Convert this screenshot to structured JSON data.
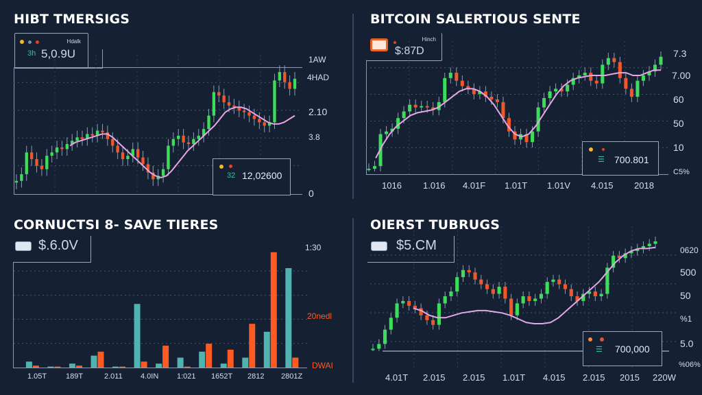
{
  "colors": {
    "background": "#162033",
    "bullish": "#3ddc5a",
    "bearish": "#f0582a",
    "moving_average": "#e6a7e6",
    "bar_teal": "#4fb3b0",
    "bar_orange": "#ff5a22",
    "grid": "#4a5670",
    "axis": "#8d9bb0"
  },
  "panels": [
    {
      "title": "HIBT TMERSIGS",
      "info_label": "Hdalk",
      "info_prefix": "3h",
      "info_value": "5,0.9U",
      "legend_value": "12,02600",
      "legend_prefix": "32",
      "y_ticks": [
        "1AW",
        "4HAD",
        "2.10",
        "3.8",
        "0"
      ]
    },
    {
      "title": "BITCOIN SALERTIOUS SENTE",
      "info_label": "Hinch",
      "info_value": "$:87D",
      "legend_value": "700.801",
      "y_ticks": [
        "7.3",
        "7.00",
        "60",
        "50",
        "10",
        "C5%"
      ],
      "x_ticks": [
        "1016",
        "1.016",
        "4.01F",
        "1.01T",
        "1.01V",
        "4.015",
        "2018"
      ]
    },
    {
      "title": "CORNUCTSI 8- SAVE TIERES",
      "info_value": "$.6.0V",
      "y_ticks": [
        "1:30",
        "20nedl",
        "DWAI"
      ],
      "x_ticks": [
        "1.05T",
        "189T",
        "2.011",
        "4.0IN",
        "1:021",
        "1652T",
        "2812",
        "2801Z"
      ]
    },
    {
      "title": "OIERST TUBRUGS",
      "info_value": "$5.CM",
      "legend_value": "700,000",
      "y_ticks": [
        "0620",
        "500",
        "50",
        "%1",
        "5.0",
        "%06%"
      ],
      "x_ticks": [
        "4.01T",
        "2.015",
        "2.015",
        "1.01T",
        "4.015",
        "2.015",
        "2015",
        "220W"
      ]
    }
  ],
  "chart_data": [
    {
      "type": "candlestick",
      "title": "HIBT TMERSIGS",
      "xlabel": "",
      "ylabel": "",
      "y_tick_labels": [
        "1AW",
        "4HAD",
        "2.10",
        "3.8",
        "0"
      ],
      "grid": true,
      "overlay": "moving average (pink)",
      "close_series": [
        5,
        9,
        22,
        18,
        14,
        12,
        20,
        22,
        25,
        24,
        27,
        29,
        31,
        30,
        33,
        32,
        35,
        34,
        30,
        26,
        22,
        18,
        20,
        24,
        19,
        15,
        10,
        6,
        8,
        12,
        26,
        30,
        32,
        28,
        27,
        30,
        32,
        36,
        44,
        58,
        56,
        52,
        50,
        49,
        47,
        46,
        44,
        42,
        40,
        38,
        40,
        65,
        70,
        64,
        60,
        66
      ],
      "ma_series": [
        null,
        null,
        null,
        null,
        null,
        null,
        null,
        null,
        null,
        null,
        26,
        28,
        29,
        30,
        31,
        32,
        33,
        33,
        31,
        28,
        25,
        22,
        19,
        16,
        13,
        10,
        8,
        7,
        8,
        11,
        15,
        19,
        23,
        26,
        29,
        32,
        35,
        38,
        42,
        46,
        48,
        49,
        49,
        48,
        46,
        44,
        42,
        40,
        39,
        39,
        40,
        42,
        44
      ],
      "annotations": [
        "5,0.9U",
        "12,02600"
      ]
    },
    {
      "type": "candlestick",
      "title": "BITCOIN SALERTIOUS SENTE",
      "x_tick_labels": [
        "1016",
        "1.016",
        "4.01F",
        "1.01T",
        "1.01V",
        "4.015",
        "2018"
      ],
      "y_tick_labels": [
        "7.3",
        "7.00",
        "60",
        "50",
        "10",
        "C5%"
      ],
      "grid": true,
      "overlay": "moving average (pink)",
      "close_series": [
        2,
        4,
        28,
        30,
        32,
        40,
        45,
        50,
        48,
        49,
        48,
        46,
        52,
        70,
        74,
        68,
        64,
        62,
        58,
        60,
        56,
        54,
        52,
        40,
        30,
        24,
        28,
        22,
        30,
        48,
        55,
        60,
        62,
        60,
        65,
        70,
        72,
        74,
        68,
        66,
        80,
        85,
        82,
        70,
        62,
        56,
        68,
        72,
        75,
        80,
        86
      ],
      "ma_series": [
        null,
        10,
        20,
        28,
        34,
        38,
        42,
        44,
        45,
        46,
        48,
        52,
        56,
        60,
        62,
        62,
        60,
        56,
        50,
        42,
        34,
        28,
        26,
        28,
        34,
        42,
        50,
        58,
        64,
        68,
        70,
        71,
        72,
        72,
        72,
        73,
        74,
        74,
        72,
        72,
        74,
        76,
        76
      ],
      "annotations": [
        "$:87D",
        "700.801"
      ]
    },
    {
      "type": "bar",
      "title": "CORNUCTSI 8- SAVE TIERES",
      "categories": [
        "1.05T",
        "189T",
        "2.011",
        "4.0IN",
        "1:021",
        "1652T",
        "2812",
        "2801Z"
      ],
      "series": [
        {
          "name": "teal",
          "values": [
            3,
            0.5,
            2,
            6,
            0.5,
            32,
            2,
            5,
            8,
            2,
            5,
            18,
            50
          ]
        },
        {
          "name": "orange",
          "values": [
            1,
            0.5,
            1,
            8,
            0.5,
            3,
            11,
            0.5,
            12,
            9,
            22,
            58,
            5
          ]
        }
      ],
      "y_tick_labels": [
        "1:30",
        "20nedl",
        "DWAI"
      ],
      "ylim": [
        0,
        60
      ],
      "grid": true,
      "annotations": [
        "$.6.0V"
      ]
    },
    {
      "type": "candlestick",
      "title": "OIERST TUBRUGS",
      "x_tick_labels": [
        "4.01T",
        "2.015",
        "2.015",
        "1.01T",
        "4.015",
        "2.015",
        "2015",
        "220W"
      ],
      "y_tick_labels": [
        "0620",
        "500",
        "50",
        "%1",
        "5.0",
        "%06%"
      ],
      "grid": true,
      "overlay": "moving average (pink)",
      "close_series": [
        2,
        6,
        18,
        28,
        40,
        42,
        38,
        36,
        30,
        26,
        22,
        40,
        46,
        50,
        62,
        68,
        66,
        60,
        56,
        52,
        48,
        54,
        44,
        30,
        40,
        46,
        42,
        44,
        48,
        58,
        60,
        56,
        52,
        46,
        42,
        48,
        50,
        46,
        48,
        70,
        80,
        78,
        82,
        84,
        86,
        88,
        90,
        92
      ],
      "ma_series": [
        null,
        null,
        null,
        null,
        null,
        36,
        34,
        30,
        28,
        28,
        30,
        32,
        33,
        34,
        34,
        33,
        32,
        30,
        27,
        24,
        23,
        23,
        24,
        28,
        34,
        40,
        46,
        52,
        58,
        66,
        74,
        80,
        84,
        86,
        86,
        87
      ],
      "annotations": [
        "$5.CM",
        "700,000"
      ]
    }
  ]
}
